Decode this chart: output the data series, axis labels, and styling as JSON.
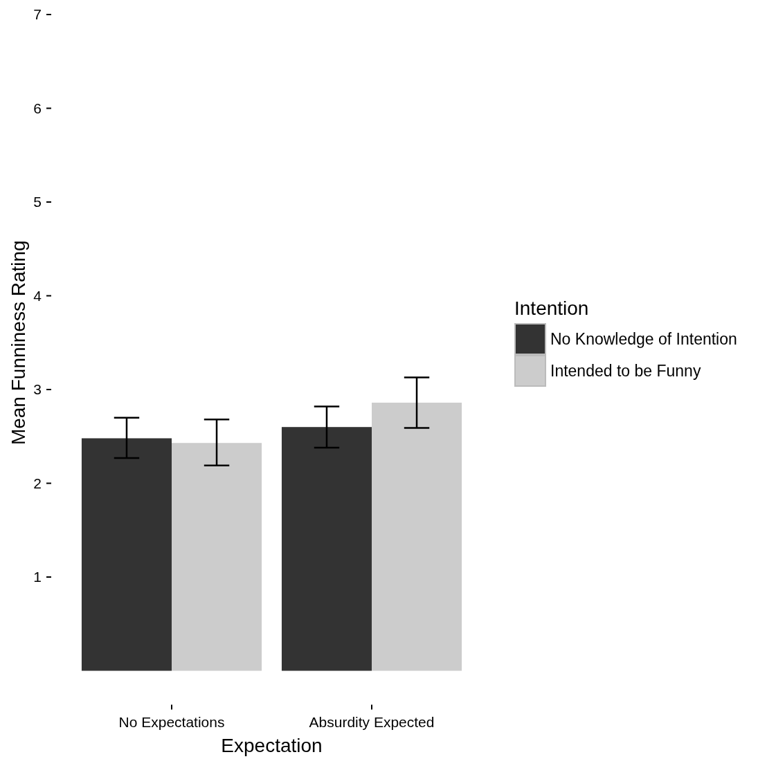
{
  "chart_data": {
    "type": "bar",
    "xlabel": "Expectation",
    "ylabel": "Mean Funniness Rating",
    "legend_title": "Intention",
    "categories": [
      "No Expectations",
      "Absurdity Expected"
    ],
    "series": [
      {
        "name": "No Knowledge of Intention",
        "color": "#333333",
        "values": [
          2.48,
          2.6
        ],
        "errors": [
          [
            2.27,
            2.7
          ],
          [
            2.38,
            2.82
          ]
        ]
      },
      {
        "name": "Intended to be Funny",
        "color": "#cccccc",
        "values": [
          2.43,
          2.86
        ],
        "errors": [
          [
            2.19,
            2.68
          ],
          [
            2.59,
            3.13
          ]
        ]
      }
    ],
    "ylim": [
      0,
      7
    ],
    "yticks": [
      1,
      2,
      3,
      4,
      5,
      6,
      7
    ],
    "grid": false,
    "legend": "right"
  }
}
